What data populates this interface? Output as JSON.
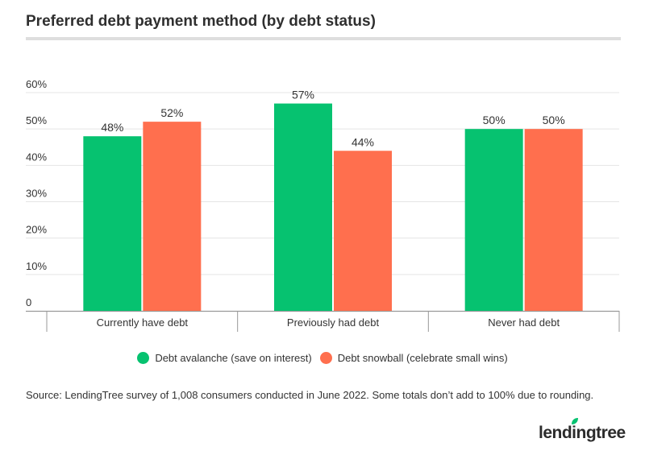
{
  "title": "Preferred debt payment method (by debt status)",
  "source": "Source: LendingTree survey of 1,008 consumers conducted in June 2022. Some totals don’t add to 100% due to rounding.",
  "logo_text": "lendingtree",
  "colors": {
    "avalanche": "#06c270",
    "snowball": "#ff6f4e",
    "grid": "#e5e5e5",
    "axis": "#999999",
    "text": "#333333"
  },
  "chart_data": {
    "type": "bar",
    "categories": [
      "Currently have debt",
      "Previously had debt",
      "Never had debt"
    ],
    "series": [
      {
        "name": "Debt avalanche (save on interest)",
        "values": [
          48,
          57,
          50
        ]
      },
      {
        "name": "Debt snowball (celebrate small wins)",
        "values": [
          52,
          44,
          50
        ]
      }
    ],
    "value_labels": [
      [
        "48%",
        "57%",
        "50%"
      ],
      [
        "52%",
        "44%",
        "50%"
      ]
    ],
    "yticks": [
      0,
      10,
      20,
      30,
      40,
      50,
      60
    ],
    "ytick_labels": [
      "0",
      "10%",
      "20%",
      "30%",
      "40%",
      "50%",
      "60%"
    ],
    "ylim": [
      0,
      60
    ],
    "grid": true,
    "legend_position": "bottom-center"
  }
}
